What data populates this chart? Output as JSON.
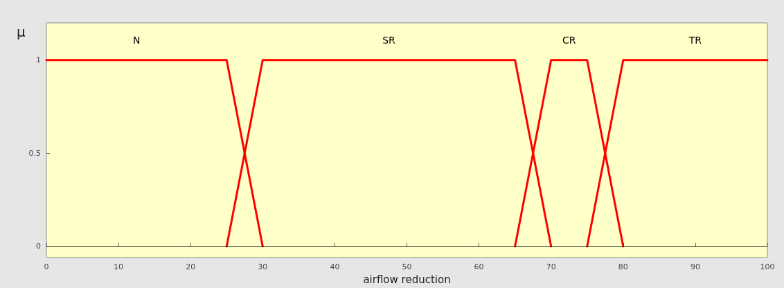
{
  "chart_data": {
    "type": "line",
    "xlabel": "airflow reduction",
    "ylabel": "μ",
    "xlim": [
      0,
      100
    ],
    "xticks": [
      0,
      10,
      20,
      30,
      40,
      50,
      60,
      70,
      80,
      90,
      100
    ],
    "ylim": [
      -0.06,
      1.2
    ],
    "yticks": [
      0,
      0.5,
      1
    ],
    "grid": false,
    "marker": "none",
    "line_style": "solid",
    "series": [
      {
        "name": "N",
        "color": "#ff0000",
        "x": [
          0,
          25,
          30
        ],
        "values": [
          1,
          1,
          0
        ]
      },
      {
        "name": "SR",
        "color": "#ff0000",
        "x": [
          25,
          30,
          65,
          70
        ],
        "values": [
          0,
          1,
          1,
          0
        ]
      },
      {
        "name": "CR",
        "color": "#ff0000",
        "x": [
          65,
          70,
          75,
          80
        ],
        "values": [
          0,
          1,
          1,
          0
        ]
      },
      {
        "name": "TR",
        "color": "#ff0000",
        "x": [
          75,
          80,
          100
        ],
        "values": [
          0,
          1,
          1
        ]
      }
    ],
    "ref_lines": [
      {
        "axis": "y",
        "value": 0,
        "color": "#222222"
      }
    ]
  }
}
